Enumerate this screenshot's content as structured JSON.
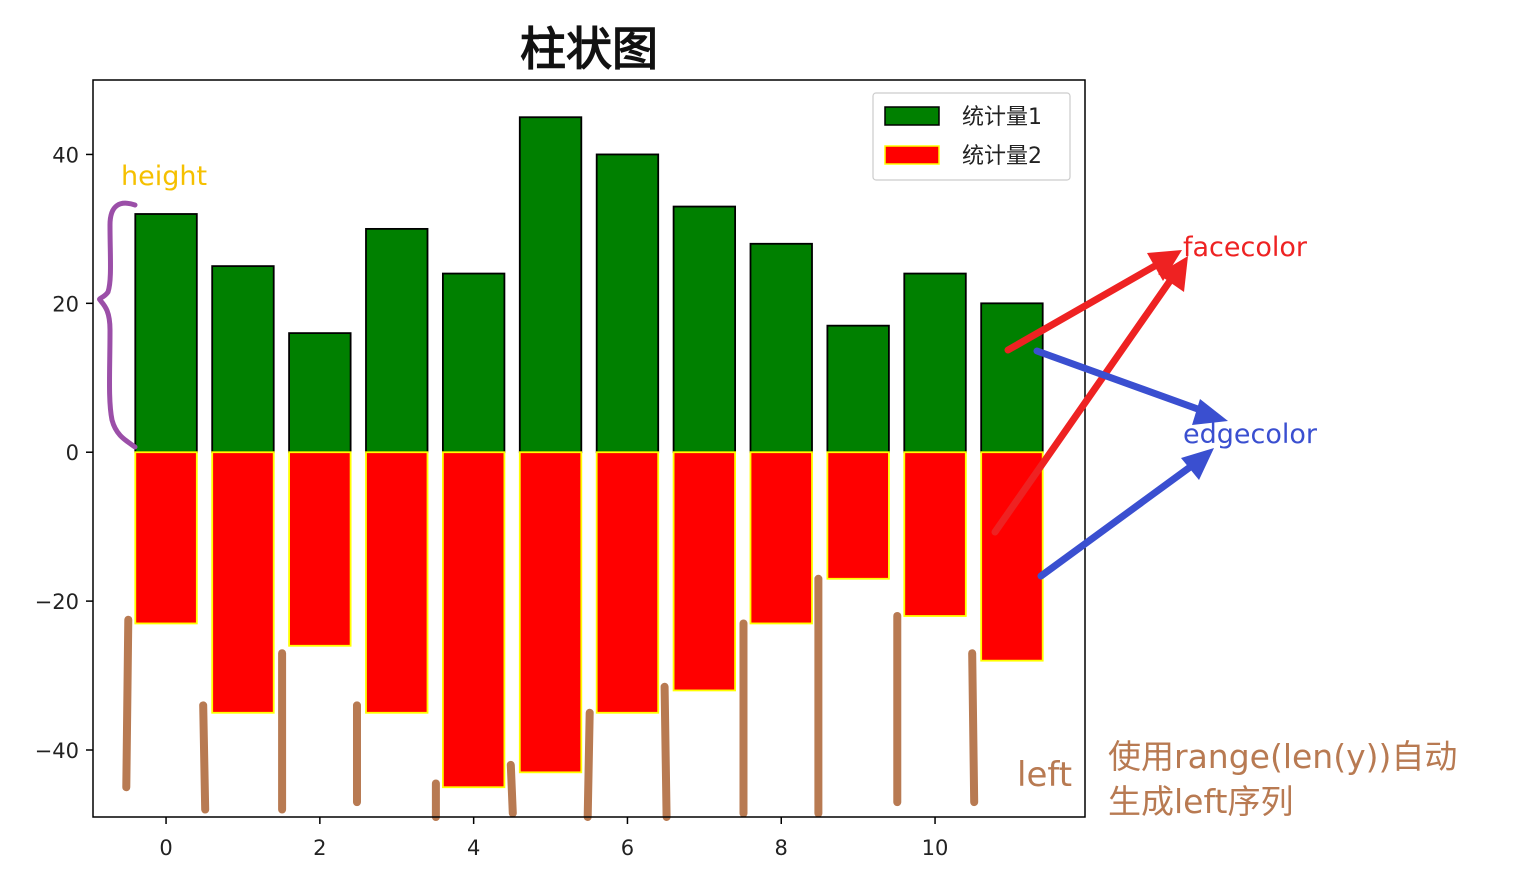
{
  "chart_data": {
    "type": "bar",
    "title": "柱状图",
    "x": [
      0,
      1,
      2,
      3,
      4,
      5,
      6,
      7,
      8,
      9,
      10,
      11
    ],
    "series": [
      {
        "name": "统计量1",
        "values": [
          32,
          25,
          16,
          30,
          24,
          45,
          40,
          33,
          28,
          17,
          24,
          20
        ],
        "facecolor": "#008000",
        "edgecolor": "#000000"
      },
      {
        "name": "统计量2",
        "values": [
          -23,
          -35,
          -26,
          -35,
          -45,
          -43,
          -35,
          -32,
          -23,
          -17,
          -22,
          -28
        ],
        "facecolor": "#ff0000",
        "edgecolor": "#ffff00"
      }
    ],
    "bar_width": 0.8,
    "xlim": [
      -0.95,
      11.95
    ],
    "ylim": [
      -49,
      50
    ],
    "xticks": [
      0,
      2,
      4,
      6,
      8,
      10
    ],
    "yticks": [
      -40,
      -20,
      0,
      20,
      40
    ],
    "legend_position": "top-right"
  },
  "annotations": {
    "height": "height",
    "facecolor": "facecolor",
    "edgecolor": "edgecolor",
    "left": "left",
    "note_line1": "使用range(len(y))自动",
    "note_line2": "生成left序列",
    "colors": {
      "height": "#f5c000",
      "brace": "#9b4fa8",
      "facecolor": "#ee2222",
      "edgecolor": "#3a4fd0",
      "left": "#b87a52"
    }
  }
}
